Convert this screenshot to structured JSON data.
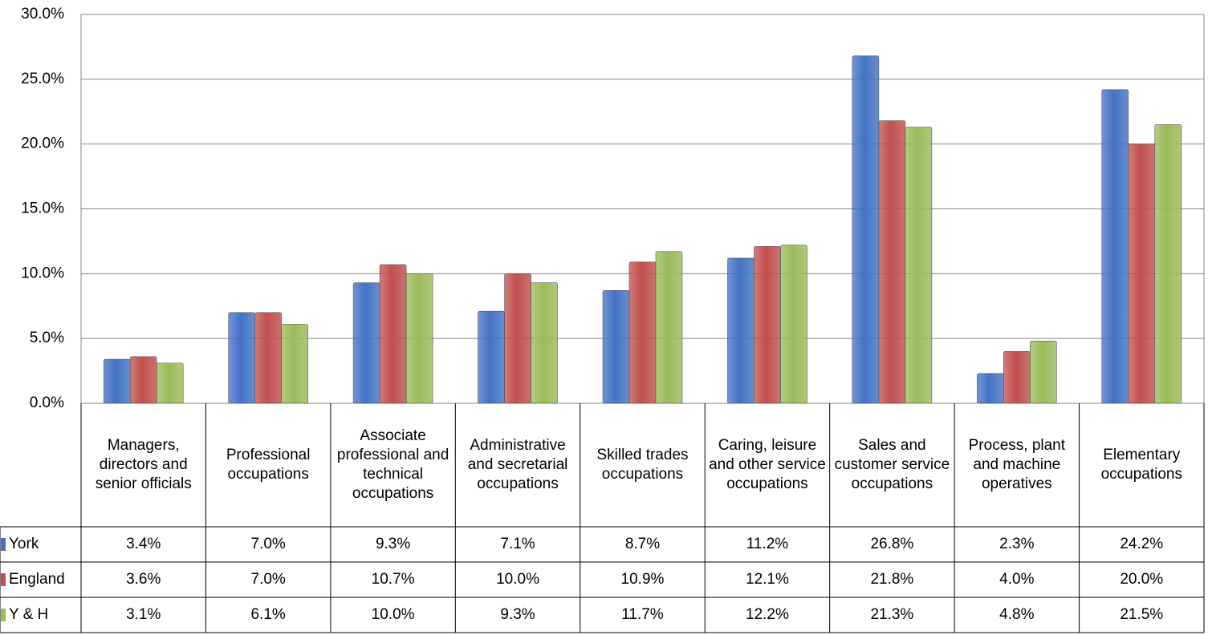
{
  "chart_data": {
    "type": "bar",
    "categories": [
      "Managers, directors and senior officials",
      "Professional occupations",
      "Associate professional and technical occupations",
      "Administrative and secretarial occupations",
      "Skilled trades occupations",
      "Caring, leisure and other service occupations",
      "Sales and customer service occupations",
      "Process, plant and machine operatives",
      "Elementary occupations"
    ],
    "series": [
      {
        "name": "York",
        "color": "#4472c4",
        "values": [
          3.4,
          7.0,
          9.3,
          7.1,
          8.7,
          11.2,
          26.8,
          2.3,
          24.2
        ],
        "value_labels": [
          "3.4%",
          "7.0%",
          "9.3%",
          "7.1%",
          "8.7%",
          "11.2%",
          "26.8%",
          "2.3%",
          "24.2%"
        ]
      },
      {
        "name": "England",
        "color": "#c0504d",
        "values": [
          3.6,
          7.0,
          10.7,
          10.0,
          10.9,
          12.1,
          21.8,
          4.0,
          20.0
        ],
        "value_labels": [
          "3.6%",
          "7.0%",
          "10.7%",
          "10.0%",
          "10.9%",
          "12.1%",
          "21.8%",
          "4.0%",
          "20.0%"
        ]
      },
      {
        "name": "Y & H",
        "color": "#9bbb59",
        "values": [
          3.1,
          6.1,
          10.0,
          9.3,
          11.7,
          12.2,
          21.3,
          4.8,
          21.5
        ],
        "value_labels": [
          "3.1%",
          "6.1%",
          "10.0%",
          "9.3%",
          "11.7%",
          "12.2%",
          "21.3%",
          "4.8%",
          "21.5%"
        ]
      }
    ],
    "ylim": [
      0,
      30
    ],
    "yticks": [
      {
        "value": 0,
        "label": "0.0%"
      },
      {
        "value": 5,
        "label": "5.0%"
      },
      {
        "value": 10,
        "label": "10.0%"
      },
      {
        "value": 15,
        "label": "15.0%"
      },
      {
        "value": 20,
        "label": "20.0%"
      },
      {
        "value": 25,
        "label": "25.0%"
      },
      {
        "value": 30,
        "label": "30.0%"
      }
    ],
    "grid": true
  }
}
